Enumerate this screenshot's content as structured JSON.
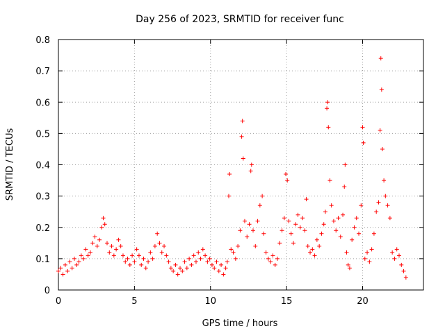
{
  "chart_data": {
    "type": "scatter",
    "title": "Day 256 of 2023, SRMTID for receiver func",
    "xlabel": "GPS time / hours",
    "ylabel": "SRMTID / TECUs",
    "xlim": [
      0,
      24
    ],
    "ylim": [
      0,
      0.8
    ],
    "xticks": [
      0,
      5,
      10,
      15,
      20
    ],
    "yticks": [
      0,
      0.1,
      0.2,
      0.3,
      0.4,
      0.5,
      0.6,
      0.7,
      0.8
    ],
    "grid": true,
    "marker": "+",
    "color": "#ff0000",
    "series": [
      {
        "name": "SRMTID",
        "points": [
          [
            0.0,
            0.06
          ],
          [
            0.15,
            0.07
          ],
          [
            0.3,
            0.05
          ],
          [
            0.45,
            0.08
          ],
          [
            0.6,
            0.06
          ],
          [
            0.75,
            0.09
          ],
          [
            0.9,
            0.07
          ],
          [
            1.05,
            0.1
          ],
          [
            1.2,
            0.08
          ],
          [
            1.35,
            0.09
          ],
          [
            1.5,
            0.11
          ],
          [
            1.65,
            0.1
          ],
          [
            1.8,
            0.13
          ],
          [
            1.95,
            0.11
          ],
          [
            2.1,
            0.12
          ],
          [
            2.25,
            0.15
          ],
          [
            2.4,
            0.17
          ],
          [
            2.55,
            0.14
          ],
          [
            2.7,
            0.16
          ],
          [
            2.85,
            0.2
          ],
          [
            2.95,
            0.23
          ],
          [
            3.05,
            0.21
          ],
          [
            3.2,
            0.15
          ],
          [
            3.35,
            0.12
          ],
          [
            3.5,
            0.14
          ],
          [
            3.65,
            0.11
          ],
          [
            3.8,
            0.13
          ],
          [
            3.95,
            0.16
          ],
          [
            4.1,
            0.14
          ],
          [
            4.25,
            0.11
          ],
          [
            4.4,
            0.09
          ],
          [
            4.55,
            0.1
          ],
          [
            4.7,
            0.08
          ],
          [
            4.85,
            0.11
          ],
          [
            5.0,
            0.09
          ],
          [
            5.15,
            0.13
          ],
          [
            5.3,
            0.11
          ],
          [
            5.45,
            0.08
          ],
          [
            5.6,
            0.1
          ],
          [
            5.75,
            0.07
          ],
          [
            5.9,
            0.09
          ],
          [
            6.05,
            0.12
          ],
          [
            6.2,
            0.1
          ],
          [
            6.35,
            0.14
          ],
          [
            6.5,
            0.18
          ],
          [
            6.65,
            0.15
          ],
          [
            6.8,
            0.12
          ],
          [
            6.95,
            0.14
          ],
          [
            7.1,
            0.11
          ],
          [
            7.25,
            0.09
          ],
          [
            7.4,
            0.07
          ],
          [
            7.55,
            0.06
          ],
          [
            7.7,
            0.08
          ],
          [
            7.85,
            0.05
          ],
          [
            8.0,
            0.07
          ],
          [
            8.15,
            0.06
          ],
          [
            8.3,
            0.09
          ],
          [
            8.45,
            0.07
          ],
          [
            8.6,
            0.1
          ],
          [
            8.75,
            0.08
          ],
          [
            8.9,
            0.11
          ],
          [
            9.05,
            0.09
          ],
          [
            9.2,
            0.12
          ],
          [
            9.35,
            0.1
          ],
          [
            9.5,
            0.13
          ],
          [
            9.65,
            0.11
          ],
          [
            9.8,
            0.09
          ],
          [
            9.95,
            0.1
          ],
          [
            10.1,
            0.08
          ],
          [
            10.25,
            0.07
          ],
          [
            10.4,
            0.09
          ],
          [
            10.55,
            0.06
          ],
          [
            10.7,
            0.08
          ],
          [
            10.85,
            0.05
          ],
          [
            11.0,
            0.07
          ],
          [
            11.1,
            0.09
          ],
          [
            11.2,
            0.3
          ],
          [
            11.25,
            0.37
          ],
          [
            11.35,
            0.13
          ],
          [
            11.5,
            0.12
          ],
          [
            11.65,
            0.1
          ],
          [
            11.8,
            0.14
          ],
          [
            11.95,
            0.19
          ],
          [
            12.05,
            0.49
          ],
          [
            12.1,
            0.54
          ],
          [
            12.15,
            0.42
          ],
          [
            12.25,
            0.22
          ],
          [
            12.4,
            0.17
          ],
          [
            12.55,
            0.21
          ],
          [
            12.65,
            0.38
          ],
          [
            12.7,
            0.4
          ],
          [
            12.8,
            0.19
          ],
          [
            12.95,
            0.14
          ],
          [
            13.1,
            0.22
          ],
          [
            13.25,
            0.27
          ],
          [
            13.4,
            0.3
          ],
          [
            13.5,
            0.18
          ],
          [
            13.65,
            0.12
          ],
          [
            13.8,
            0.1
          ],
          [
            13.95,
            0.09
          ],
          [
            14.1,
            0.11
          ],
          [
            14.25,
            0.08
          ],
          [
            14.4,
            0.1
          ],
          [
            14.55,
            0.15
          ],
          [
            14.7,
            0.19
          ],
          [
            14.85,
            0.23
          ],
          [
            14.95,
            0.37
          ],
          [
            15.05,
            0.35
          ],
          [
            15.15,
            0.22
          ],
          [
            15.3,
            0.18
          ],
          [
            15.45,
            0.15
          ],
          [
            15.6,
            0.21
          ],
          [
            15.75,
            0.24
          ],
          [
            15.9,
            0.2
          ],
          [
            16.05,
            0.23
          ],
          [
            16.2,
            0.19
          ],
          [
            16.3,
            0.29
          ],
          [
            16.4,
            0.14
          ],
          [
            16.55,
            0.12
          ],
          [
            16.7,
            0.13
          ],
          [
            16.85,
            0.11
          ],
          [
            17.0,
            0.16
          ],
          [
            17.15,
            0.14
          ],
          [
            17.3,
            0.18
          ],
          [
            17.45,
            0.21
          ],
          [
            17.55,
            0.25
          ],
          [
            17.65,
            0.58
          ],
          [
            17.7,
            0.6
          ],
          [
            17.75,
            0.52
          ],
          [
            17.85,
            0.35
          ],
          [
            17.95,
            0.27
          ],
          [
            18.1,
            0.22
          ],
          [
            18.25,
            0.19
          ],
          [
            18.4,
            0.23
          ],
          [
            18.55,
            0.17
          ],
          [
            18.7,
            0.24
          ],
          [
            18.8,
            0.33
          ],
          [
            18.85,
            0.4
          ],
          [
            18.95,
            0.12
          ],
          [
            19.05,
            0.08
          ],
          [
            19.15,
            0.07
          ],
          [
            19.3,
            0.16
          ],
          [
            19.45,
            0.2
          ],
          [
            19.6,
            0.23
          ],
          [
            19.75,
            0.18
          ],
          [
            19.9,
            0.27
          ],
          [
            20.0,
            0.52
          ],
          [
            20.05,
            0.47
          ],
          [
            20.15,
            0.1
          ],
          [
            20.3,
            0.12
          ],
          [
            20.45,
            0.09
          ],
          [
            20.6,
            0.13
          ],
          [
            20.75,
            0.18
          ],
          [
            20.9,
            0.25
          ],
          [
            21.05,
            0.28
          ],
          [
            21.15,
            0.51
          ],
          [
            21.2,
            0.74
          ],
          [
            21.25,
            0.64
          ],
          [
            21.3,
            0.45
          ],
          [
            21.4,
            0.35
          ],
          [
            21.5,
            0.3
          ],
          [
            21.65,
            0.27
          ],
          [
            21.8,
            0.23
          ],
          [
            21.95,
            0.12
          ],
          [
            22.1,
            0.1
          ],
          [
            22.25,
            0.13
          ],
          [
            22.4,
            0.11
          ],
          [
            22.55,
            0.08
          ],
          [
            22.7,
            0.06
          ],
          [
            22.85,
            0.04
          ]
        ]
      }
    ]
  }
}
